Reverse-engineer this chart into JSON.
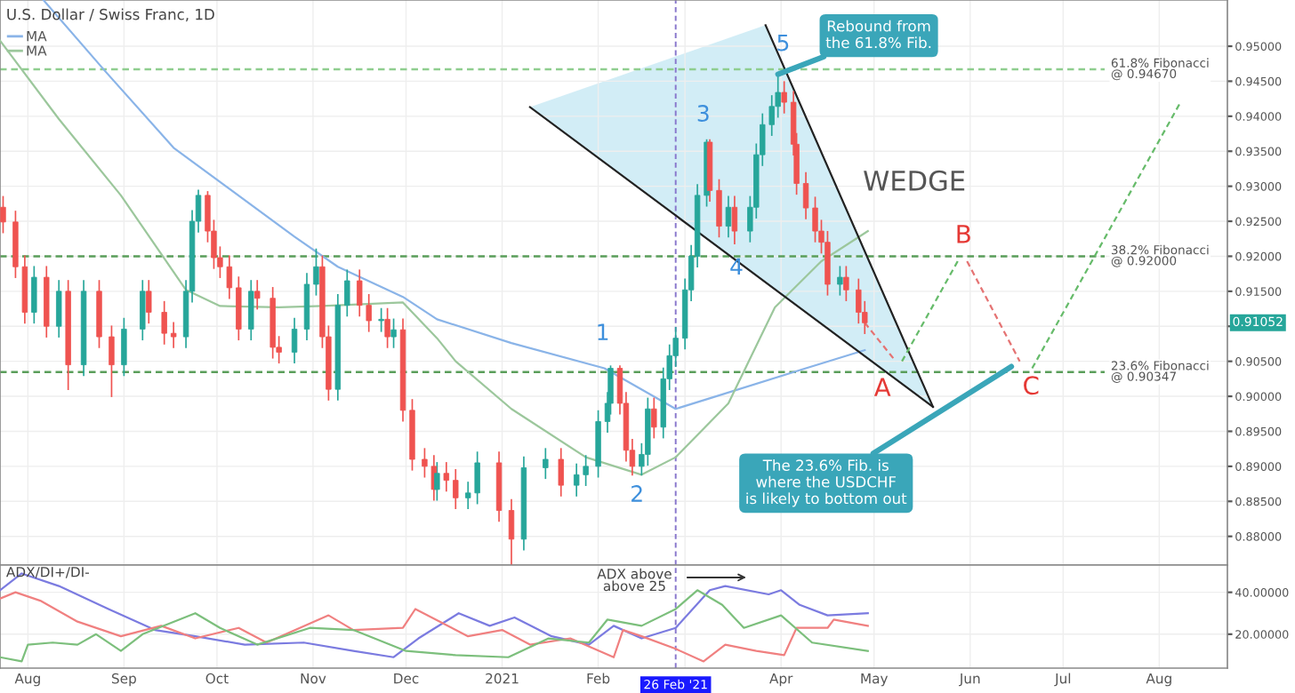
{
  "chart_data": [
    {
      "type": "candlestick",
      "title": "U.S. Dollar / Swiss Franc, 1D",
      "x": [
        "2020-07-24",
        "2020-07-28",
        "2020-07-31",
        "2020-08-03",
        "2020-08-07",
        "2020-08-11",
        "2020-08-14",
        "2020-08-19",
        "2020-08-24",
        "2020-08-28",
        "2020-09-01",
        "2020-09-07",
        "2020-09-09",
        "2020-09-14",
        "2020-09-17",
        "2020-09-21",
        "2020-09-23",
        "2020-09-25",
        "2020-09-28",
        "2020-09-30",
        "2020-10-02",
        "2020-10-05",
        "2020-10-08",
        "2020-10-12",
        "2020-10-14",
        "2020-10-19",
        "2020-10-21",
        "2020-10-26",
        "2020-10-30",
        "2020-11-02",
        "2020-11-04",
        "2020-11-06",
        "2020-11-09",
        "2020-11-12",
        "2020-11-16",
        "2020-11-19",
        "2020-11-23",
        "2020-11-25",
        "2020-11-27",
        "2020-11-30",
        "2020-12-03",
        "2020-12-07",
        "2020-12-10",
        "2020-12-11",
        "2020-12-14",
        "2020-12-17",
        "2020-12-21",
        "2020-12-24",
        "2020-12-31",
        "2021-01-04",
        "2021-01-08",
        "2021-01-15",
        "2021-01-20",
        "2021-01-25",
        "2021-01-28",
        "2021-02-01",
        "2021-02-04",
        "2021-02-05",
        "2021-02-08",
        "2021-02-10",
        "2021-02-12",
        "2021-02-15",
        "2021-02-17",
        "2021-02-19",
        "2021-02-22",
        "2021-02-24",
        "2021-02-26",
        "2021-03-01",
        "2021-03-03",
        "2021-03-05",
        "2021-03-08",
        "2021-03-09",
        "2021-03-12",
        "2021-03-15",
        "2021-03-17",
        "2021-03-22",
        "2021-03-24",
        "2021-03-26",
        "2021-03-29",
        "2021-03-31",
        "2021-04-02",
        "2021-04-05",
        "2021-04-06",
        "2021-04-09",
        "2021-04-12",
        "2021-04-14",
        "2021-04-16",
        "2021-04-20",
        "2021-04-22",
        "2021-04-26",
        "2021-04-28"
      ],
      "ohlc": [
        [
          0.927,
          0.9285,
          0.9234,
          0.9249
        ],
        [
          0.9249,
          0.9264,
          0.917,
          0.9185
        ],
        [
          0.9185,
          0.92,
          0.9105,
          0.912
        ],
        [
          0.912,
          0.9185,
          0.9105,
          0.917
        ],
        [
          0.917,
          0.9185,
          0.9085,
          0.91
        ],
        [
          0.91,
          0.9165,
          0.9085,
          0.915
        ],
        [
          0.915,
          0.9165,
          0.901,
          0.9045
        ],
        [
          0.9045,
          0.9165,
          0.903,
          0.915
        ],
        [
          0.915,
          0.9165,
          0.907,
          0.9085
        ],
        [
          0.9085,
          0.91,
          0.9,
          0.9045
        ],
        [
          0.9045,
          0.9111,
          0.903,
          0.9096
        ],
        [
          0.9096,
          0.9165,
          0.9081,
          0.915
        ],
        [
          0.915,
          0.9165,
          0.9105,
          0.912
        ],
        [
          0.912,
          0.9135,
          0.9075,
          0.909
        ],
        [
          0.909,
          0.9105,
          0.907,
          0.9085
        ],
        [
          0.9085,
          0.9165,
          0.907,
          0.915
        ],
        [
          0.915,
          0.9265,
          0.9135,
          0.925
        ],
        [
          0.925,
          0.9294,
          0.9235,
          0.9287
        ],
        [
          0.9287,
          0.9292,
          0.9221,
          0.9236
        ],
        [
          0.9236,
          0.9251,
          0.9183,
          0.9198
        ],
        [
          0.9198,
          0.9213,
          0.917,
          0.9185
        ],
        [
          0.9185,
          0.92,
          0.914,
          0.9155
        ],
        [
          0.9155,
          0.917,
          0.9081,
          0.9096
        ],
        [
          0.9096,
          0.9165,
          0.9081,
          0.915
        ],
        [
          0.915,
          0.9165,
          0.9125,
          0.914
        ],
        [
          0.914,
          0.9155,
          0.9055,
          0.907
        ],
        [
          0.907,
          0.9085,
          0.9048,
          0.9063
        ],
        [
          0.9063,
          0.9111,
          0.9048,
          0.9096
        ],
        [
          0.9096,
          0.9175,
          0.9081,
          0.916
        ],
        [
          0.916,
          0.921,
          0.9145,
          0.9185
        ],
        [
          0.9185,
          0.92,
          0.907,
          0.9085
        ],
        [
          0.9085,
          0.91,
          0.8995,
          0.901
        ],
        [
          0.901,
          0.9145,
          0.8995,
          0.913
        ],
        [
          0.913,
          0.918,
          0.9115,
          0.9165
        ],
        [
          0.9165,
          0.918,
          0.9115,
          0.913
        ],
        [
          0.913,
          0.9145,
          0.9093,
          0.9108
        ],
        [
          0.9108,
          0.9125,
          0.9093,
          0.911
        ],
        [
          0.911,
          0.9125,
          0.907,
          0.9085
        ],
        [
          0.9085,
          0.911,
          0.907,
          0.9095
        ],
        [
          0.9095,
          0.911,
          0.8965,
          0.898
        ],
        [
          0.898,
          0.8995,
          0.8895,
          0.891
        ],
        [
          0.891,
          0.8925,
          0.8885,
          0.89
        ],
        [
          0.89,
          0.8915,
          0.8852,
          0.8867
        ],
        [
          0.8867,
          0.8905,
          0.8852,
          0.889
        ],
        [
          0.889,
          0.8905,
          0.8865,
          0.888
        ],
        [
          0.888,
          0.8895,
          0.884,
          0.8855
        ],
        [
          0.8855,
          0.8877,
          0.884,
          0.8862
        ],
        [
          0.8862,
          0.892,
          0.8847,
          0.8905
        ],
        [
          0.8905,
          0.892,
          0.8822,
          0.8837
        ],
        [
          0.8837,
          0.8852,
          0.876,
          0.8796
        ],
        [
          0.8796,
          0.8913,
          0.8781,
          0.8898
        ],
        [
          0.8898,
          0.8925,
          0.8883,
          0.891
        ],
        [
          0.891,
          0.8925,
          0.8858,
          0.8873
        ],
        [
          0.8873,
          0.8903,
          0.8858,
          0.8888
        ],
        [
          0.8888,
          0.8915,
          0.8873,
          0.89
        ],
        [
          0.89,
          0.8979,
          0.8885,
          0.8964
        ],
        [
          0.8964,
          0.9005,
          0.8949,
          0.899
        ],
        [
          0.899,
          0.9043,
          0.8975,
          0.904
        ],
        [
          0.904,
          0.9043,
          0.8975,
          0.899
        ],
        [
          0.899,
          0.9005,
          0.8908,
          0.8923
        ],
        [
          0.8923,
          0.8938,
          0.8888,
          0.89
        ],
        [
          0.89,
          0.8932,
          0.8888,
          0.8917
        ],
        [
          0.8917,
          0.8997,
          0.8902,
          0.8982
        ],
        [
          0.8982,
          0.8997,
          0.8941,
          0.8956
        ],
        [
          0.8956,
          0.904,
          0.8941,
          0.9025
        ],
        [
          0.9025,
          0.9073,
          0.901,
          0.9058
        ],
        [
          0.9058,
          0.9098,
          0.9043,
          0.9083
        ],
        [
          0.9083,
          0.9167,
          0.9068,
          0.9152
        ],
        [
          0.9152,
          0.9215,
          0.9137,
          0.92
        ],
        [
          0.92,
          0.9302,
          0.9185,
          0.9287
        ],
        [
          0.9287,
          0.9366,
          0.9272,
          0.9363
        ],
        [
          0.9363,
          0.9366,
          0.9279,
          0.9294
        ],
        [
          0.9294,
          0.9309,
          0.9228,
          0.9243
        ],
        [
          0.9243,
          0.9285,
          0.9228,
          0.927
        ],
        [
          0.927,
          0.9285,
          0.9218,
          0.9236
        ],
        [
          0.9236,
          0.9285,
          0.9221,
          0.927
        ],
        [
          0.927,
          0.936,
          0.9255,
          0.9345
        ],
        [
          0.9345,
          0.9403,
          0.933,
          0.9388
        ],
        [
          0.9388,
          0.9429,
          0.9373,
          0.9414
        ],
        [
          0.9414,
          0.946,
          0.9399,
          0.9434
        ],
        [
          0.9434,
          0.9449,
          0.9405,
          0.942
        ],
        [
          0.942,
          0.9435,
          0.9345,
          0.936
        ],
        [
          0.936,
          0.9375,
          0.9289,
          0.9304
        ],
        [
          0.9304,
          0.9319,
          0.9254,
          0.9269
        ],
        [
          0.9269,
          0.9284,
          0.9221,
          0.9236
        ],
        [
          0.9236,
          0.9251,
          0.9205,
          0.922
        ],
        [
          0.922,
          0.9235,
          0.9145,
          0.916
        ],
        [
          0.916,
          0.9185,
          0.9145,
          0.917
        ],
        [
          0.917,
          0.9185,
          0.9137,
          0.9152
        ],
        [
          0.9152,
          0.9167,
          0.9105,
          0.912
        ],
        [
          0.912,
          0.9135,
          0.909,
          0.9105
        ]
      ],
      "colors": [
        "#ef5350",
        "#ef5350",
        "#ef5350",
        "#26a69a",
        "#ef5350",
        "#26a69a",
        "#ef5350",
        "#26a69a",
        "#ef5350",
        "#ef5350",
        "#26a69a",
        "#26a69a",
        "#ef5350",
        "#ef5350",
        "#ef5350",
        "#26a69a",
        "#26a69a",
        "#26a69a",
        "#ef5350",
        "#ef5350",
        "#ef5350",
        "#ef5350",
        "#ef5350",
        "#26a69a",
        "#ef5350",
        "#ef5350",
        "#ef5350",
        "#26a69a",
        "#26a69a",
        "#26a69a",
        "#ef5350",
        "#ef5350",
        "#26a69a",
        "#26a69a",
        "#ef5350",
        "#ef5350",
        "#26a69a",
        "#ef5350",
        "#26a69a",
        "#ef5350",
        "#ef5350",
        "#ef5350",
        "#ef5350",
        "#26a69a",
        "#ef5350",
        "#ef5350",
        "#26a69a",
        "#26a69a",
        "#ef5350",
        "#ef5350",
        "#26a69a",
        "#26a69a",
        "#ef5350",
        "#26a69a",
        "#26a69a",
        "#26a69a",
        "#26a69a",
        "#26a69a",
        "#ef5350",
        "#ef5350",
        "#ef5350",
        "#26a69a",
        "#26a69a",
        "#ef5350",
        "#26a69a",
        "#26a69a",
        "#26a69a",
        "#26a69a",
        "#26a69a",
        "#26a69a",
        "#26a69a",
        "#ef5350",
        "#ef5350",
        "#26a69a",
        "#ef5350",
        "#26a69a",
        "#26a69a",
        "#26a69a",
        "#26a69a",
        "#26a69a",
        "#ef5350",
        "#ef5350",
        "#ef5350",
        "#ef5350",
        "#ef5350",
        "#ef5350",
        "#ef5350",
        "#26a69a",
        "#ef5350",
        "#ef5350",
        "#ef5350"
      ],
      "series": [
        {
          "name": "MA",
          "type": "line",
          "color": "#8ab4e8",
          "x": [
            "2020-08-06",
            "2020-08-26",
            "2020-09-17",
            "2020-10-26",
            "2020-11-09",
            "2020-11-30",
            "2020-12-11",
            "2021-01-04",
            "2021-02-03",
            "2021-02-26",
            "2021-03-11",
            "2021-04-09",
            "2021-04-28"
          ],
          "values": [
            0.9566,
            0.9464,
            0.9355,
            0.9228,
            0.9185,
            0.9142,
            0.911,
            0.9076,
            0.904,
            0.8982,
            0.9,
            0.904,
            0.9066
          ]
        },
        {
          "name": "MA",
          "type": "line",
          "color": "#9cc79c",
          "x": [
            "2020-07-23",
            "2020-08-11",
            "2020-08-31",
            "2020-09-21",
            "2020-10-02",
            "2020-10-21",
            "2020-11-04",
            "2020-11-30",
            "2020-12-11",
            "2020-12-17",
            "2021-01-04",
            "2021-01-28",
            "2021-02-15",
            "2021-02-26",
            "2021-03-15",
            "2021-03-30",
            "2021-04-14",
            "2021-04-29"
          ],
          "values": [
            0.9508,
            0.9396,
            0.9287,
            0.9152,
            0.9129,
            0.9127,
            0.9129,
            0.9134,
            0.9083,
            0.905,
            0.8982,
            0.8913,
            0.8888,
            0.8913,
            0.899,
            0.9127,
            0.9193,
            0.9236
          ]
        },
        {
          "type": "line",
          "color": "#222222",
          "x": [
            "2021-01-10",
            "2021-05-20"
          ],
          "values": [
            0.9413,
            0.8985
          ]
        },
        {
          "type": "line",
          "color": "#222222",
          "x": [
            "2021-03-27",
            "2021-05-20"
          ],
          "values": [
            0.953,
            0.8985
          ]
        },
        {
          "type": "line",
          "color": "#e57373",
          "line_style": "dashed",
          "x": [
            "2021-04-28",
            "2021-05-08"
          ],
          "values": [
            0.9105,
            0.905
          ]
        },
        {
          "type": "line",
          "color": "#66bb6a",
          "line_style": "dashed",
          "x": [
            "2021-05-10",
            "2021-05-28"
          ],
          "values": [
            0.905,
            0.9193
          ]
        },
        {
          "type": "line",
          "color": "#e57373",
          "line_style": "dashed",
          "x": [
            "2021-05-31",
            "2021-06-17"
          ],
          "values": [
            0.9193,
            0.905
          ]
        },
        {
          "type": "line",
          "color": "#66bb6a",
          "line_style": "dashed",
          "x": [
            "2021-06-21",
            "2021-08-08"
          ],
          "values": [
            0.904,
            0.9421
          ]
        }
      ],
      "ylim": [
        0.8759,
        0.9566
      ],
      "yticks": [
        {
          "value": 0.88,
          "label": "0.88000"
        },
        {
          "value": 0.885,
          "label": "0.88500"
        },
        {
          "value": 0.89,
          "label": "0.89000"
        },
        {
          "value": 0.895,
          "label": "0.89500"
        },
        {
          "value": 0.9,
          "label": "0.90000"
        },
        {
          "value": 0.905,
          "label": "0.90500"
        },
        {
          "value": 0.91,
          "label": null
        },
        {
          "value": 0.915,
          "label": "0.91500"
        },
        {
          "value": 0.92,
          "label": "0.92000"
        },
        {
          "value": 0.925,
          "label": "0.92500"
        },
        {
          "value": 0.93,
          "label": "0.93000"
        },
        {
          "value": 0.935,
          "label": "0.93500"
        },
        {
          "value": 0.94,
          "label": "0.94000"
        },
        {
          "value": 0.945,
          "label": "0.94500"
        },
        {
          "value": 0.95,
          "label": "0.95000"
        }
      ],
      "xlim": [
        "2020-07-23",
        "2021-08-23"
      ],
      "xticks": [
        {
          "value": "2020-08-01",
          "label": null
        },
        {
          "value": "2020-09-01",
          "label": null
        },
        {
          "value": "2020-10-01",
          "label": null
        },
        {
          "value": "2020-11-01",
          "label": null
        },
        {
          "value": "2020-12-01",
          "label": null
        },
        {
          "value": "2021-01-01",
          "label": null
        },
        {
          "value": "2021-02-01",
          "label": null
        },
        {
          "value": "2021-03-01",
          "label": null
        },
        {
          "value": "2021-04-01",
          "label": null
        },
        {
          "value": "2021-05-01",
          "label": null
        },
        {
          "value": "2021-06-01",
          "label": null
        },
        {
          "value": "2021-07-01",
          "label": null
        },
        {
          "value": "2021-08-01",
          "label": null
        }
      ],
      "tick_labels": "y",
      "grid": true,
      "legend": "top left",
      "ref_lines": [
        {
          "axis": "y",
          "value": 0.9467,
          "label": "61.8% Fibonacci\n@ 0.94670",
          "color": "#8fce8f",
          "line_style": "dashed"
        },
        {
          "axis": "y",
          "value": 0.92,
          "label": "38.2% Fibonacci\n@ 0.92000",
          "color": "#5a9e5a",
          "line_style": "dashed"
        },
        {
          "axis": "y",
          "value": 0.90347,
          "label": "23.6% Fibonacci\n@ 0.90347",
          "color": "#5a9e5a",
          "line_style": "dashed"
        },
        {
          "axis": "x",
          "value": "2021-02-26",
          "color": "#8877cc",
          "line_style": "dashed"
        }
      ],
      "annotations": [
        {
          "text": "Rebound from\nthe 61.8% Fib.",
          "x": "2021-03-31",
          "y": 0.946
        },
        {
          "text": "The 23.6% Fib. is\nwhere the USDCHF\nis likely to bottom out",
          "x": "2021-06-17",
          "y": 0.905
        },
        "1",
        "2",
        "3",
        "4",
        "5",
        "A",
        "B",
        "C",
        "WEDGE",
        {
          "text": "0.91052",
          "y": 0.91052
        }
      ]
    },
    {
      "type": "line",
      "title": "ADX/DI+/DI-",
      "series": [
        {
          "color": "#7b7be0",
          "x": [
            "2020-07-23",
            "2020-07-30",
            "2020-08-11",
            "2020-08-27",
            "2020-09-11",
            "2020-09-24",
            "2020-10-10",
            "2020-10-29",
            "2020-11-14",
            "2020-11-27",
            "2020-12-05",
            "2020-12-18",
            "2020-12-28",
            "2021-01-05",
            "2021-01-17",
            "2021-01-29",
            "2021-02-06",
            "2021-02-15",
            "2021-02-26",
            "2021-03-09",
            "2021-03-14",
            "2021-03-28",
            "2021-04-01",
            "2021-04-07",
            "2021-04-16",
            "2021-04-29"
          ],
          "values": [
            41,
            49,
            43,
            32,
            22,
            19,
            15,
            16,
            12,
            9,
            18,
            30,
            24,
            28,
            19,
            15,
            24,
            18,
            23,
            41,
            43,
            39,
            41,
            34,
            29,
            30
          ]
        },
        {
          "color": "#f08080",
          "x": [
            "2020-07-23",
            "2020-07-28",
            "2020-08-05",
            "2020-08-17",
            "2020-08-31",
            "2020-09-13",
            "2020-09-24",
            "2020-10-08",
            "2020-10-17",
            "2020-11-06",
            "2020-11-14",
            "2020-11-30",
            "2020-12-04",
            "2020-12-21",
            "2021-01-01",
            "2021-01-10",
            "2021-01-23",
            "2021-02-06",
            "2021-02-09",
            "2021-02-15",
            "2021-02-26",
            "2021-03-07",
            "2021-03-14",
            "2021-03-24",
            "2021-04-02",
            "2021-04-06",
            "2021-04-16",
            "2021-04-18",
            "2021-04-29"
          ],
          "values": [
            37,
            40,
            36,
            26,
            19,
            24,
            18,
            23,
            16,
            29,
            22,
            23,
            32,
            19,
            22,
            15,
            18,
            9,
            22,
            19,
            13,
            7,
            15,
            12,
            10,
            23,
            23,
            27,
            24
          ]
        },
        {
          "color": "#7cbf7c",
          "x": [
            "2020-07-23",
            "2020-07-30",
            "2020-08-01",
            "2020-08-09",
            "2020-08-17",
            "2020-08-23",
            "2020-08-31",
            "2020-09-07",
            "2020-09-24",
            "2020-10-02",
            "2020-10-14",
            "2020-10-31",
            "2020-11-14",
            "2020-12-01",
            "2020-12-17",
            "2021-01-03",
            "2021-01-16",
            "2021-01-29",
            "2021-02-04",
            "2021-02-15",
            "2021-02-26",
            "2021-03-05",
            "2021-03-13",
            "2021-03-20",
            "2021-04-01",
            "2021-04-11",
            "2021-04-29"
          ],
          "values": [
            9,
            7,
            15,
            16,
            15,
            20,
            12,
            20,
            30,
            23,
            15,
            23,
            22,
            12,
            10,
            9,
            18,
            16,
            27,
            24,
            32,
            41,
            34,
            23,
            29,
            16,
            12
          ]
        }
      ],
      "ylim": [
        3.8,
        53
      ],
      "yticks": [
        {
          "value": 20,
          "label": "20.00000"
        },
        {
          "value": 40,
          "label": "40.00000"
        }
      ],
      "xlim": [
        "2020-07-23",
        "2021-08-23"
      ],
      "xticks": [
        {
          "value": "2020-08-01",
          "label": "Aug"
        },
        {
          "value": "2020-09-01",
          "label": "Sep"
        },
        {
          "value": "2020-10-01",
          "label": "Oct"
        },
        {
          "value": "2020-11-01",
          "label": "Nov"
        },
        {
          "value": "2020-12-01",
          "label": "Dec"
        },
        {
          "value": "2021-01-01",
          "label": "2021"
        },
        {
          "value": "2021-02-01",
          "label": "Feb"
        },
        {
          "value": "2021-03-01",
          "label": null
        },
        {
          "value": "2021-04-01",
          "label": "Apr"
        },
        {
          "value": "2021-05-01",
          "label": "May"
        },
        {
          "value": "2021-06-01",
          "label": "Jun"
        },
        {
          "value": "2021-07-01",
          "label": "Jul"
        },
        {
          "value": "2021-08-01",
          "label": "Aug"
        }
      ],
      "grid": true,
      "ref_lines": [
        {
          "axis": "x",
          "value": "2021-02-26",
          "label": "26 Feb '21",
          "color": "#8877cc",
          "line_style": "dashed"
        }
      ],
      "annotations": [
        "ADX above\nabove 25"
      ]
    }
  ]
}
